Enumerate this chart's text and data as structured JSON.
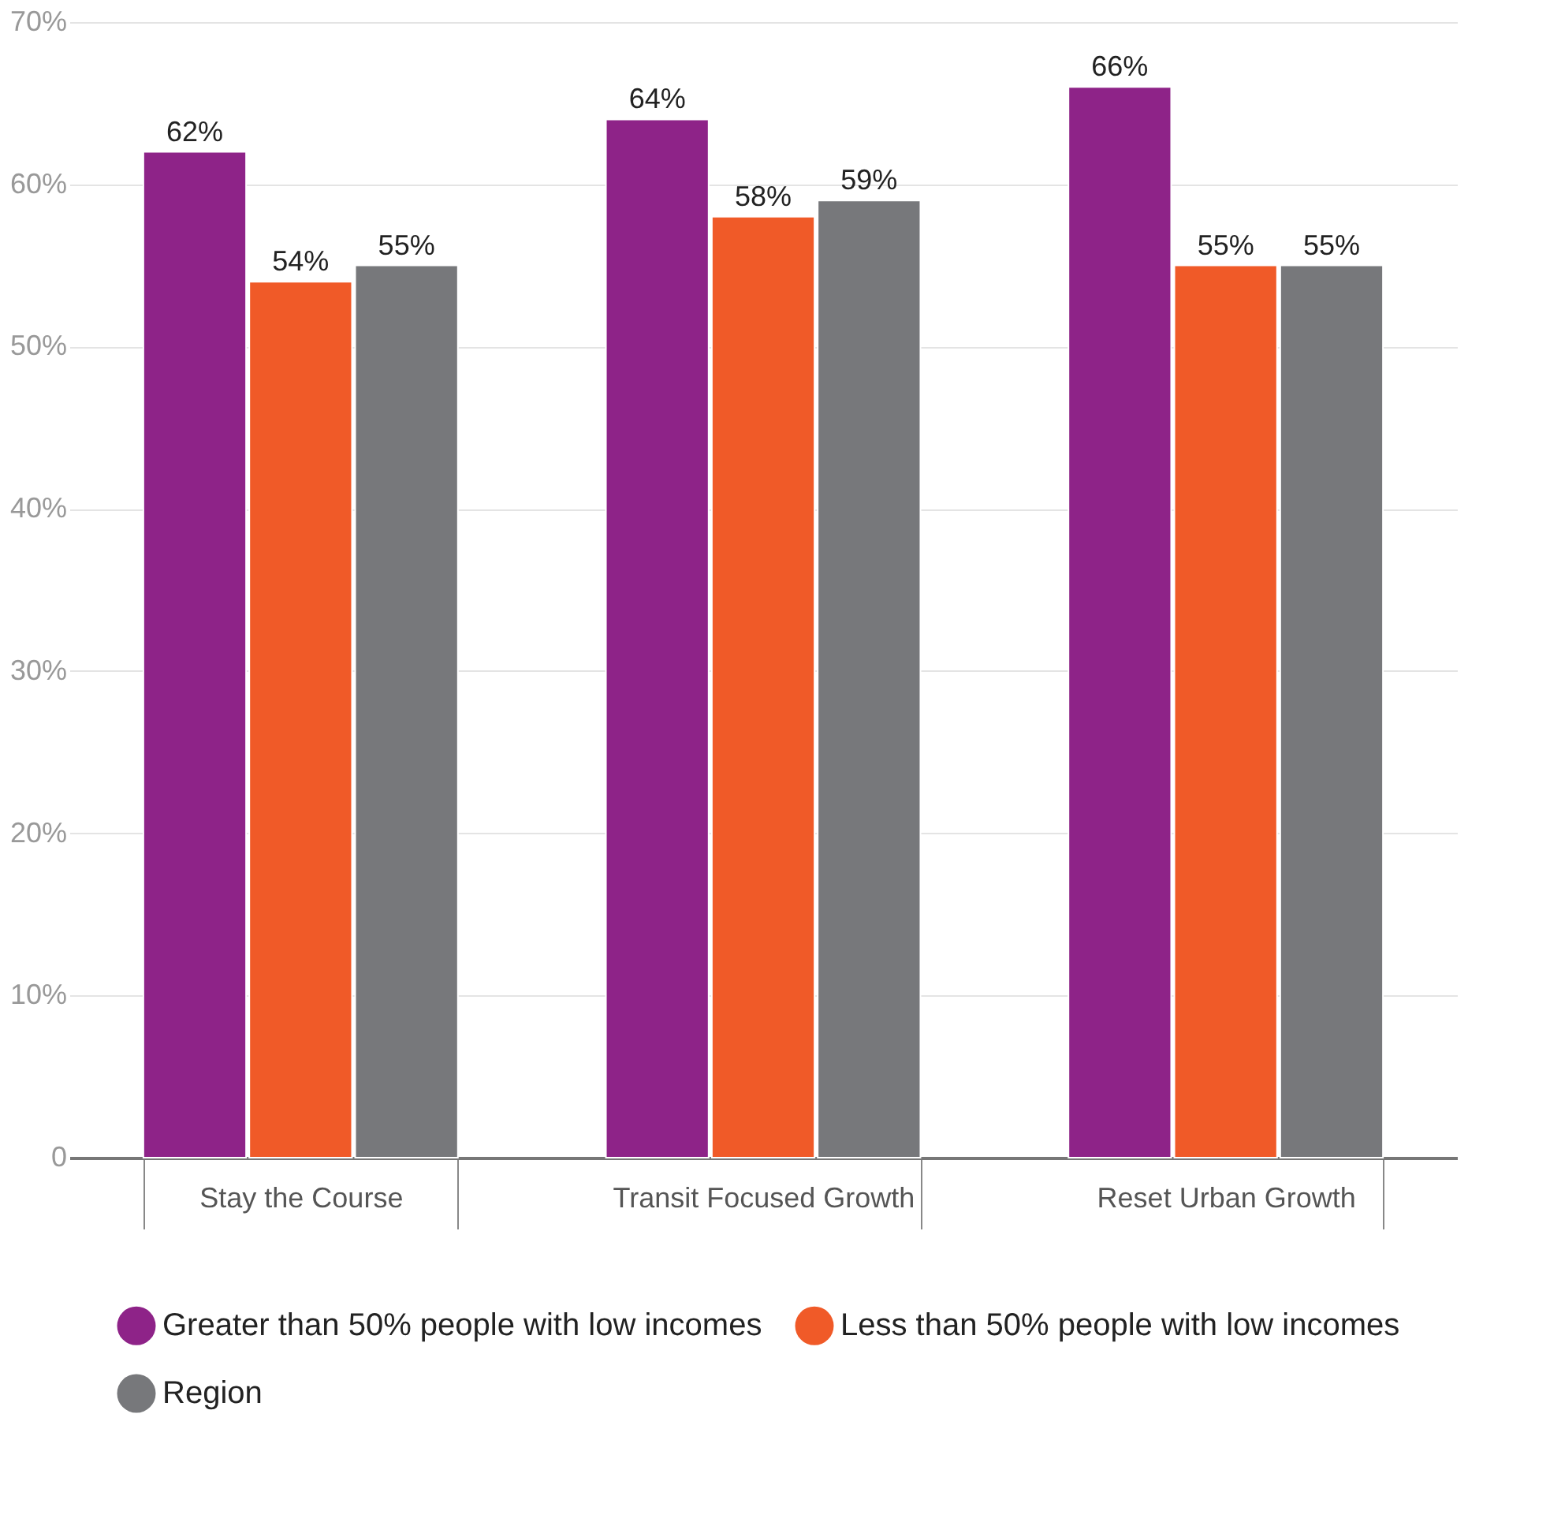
{
  "chart_data": {
    "type": "bar",
    "categories": [
      "Stay the Course",
      "Transit Focused Growth",
      "Reset Urban Growth"
    ],
    "series": [
      {
        "name": "Greater than 50% people with low incomes",
        "color": "#8e2388",
        "values": [
          62,
          64,
          66
        ],
        "value_labels": [
          "62%",
          "64%",
          "66%"
        ]
      },
      {
        "name": "Less than 50% people with low incomes",
        "color": "#f05a28",
        "values": [
          54,
          58,
          55
        ],
        "value_labels": [
          "54%",
          "58%",
          "55%"
        ]
      },
      {
        "name": "Region",
        "color": "#77787b",
        "values": [
          55,
          59,
          55
        ],
        "value_labels": [
          "55%",
          "59%",
          "55%"
        ]
      }
    ],
    "ylim": [
      0,
      70
    ],
    "yticks": [
      {
        "value": 0,
        "label": "0"
      },
      {
        "value": 10,
        "label": "10%"
      },
      {
        "value": 20,
        "label": "20%"
      },
      {
        "value": 30,
        "label": "30%"
      },
      {
        "value": 40,
        "label": "40%"
      },
      {
        "value": 50,
        "label": "50%"
      },
      {
        "value": 60,
        "label": "60%"
      },
      {
        "value": 70,
        "label": "70%"
      }
    ],
    "grid": "y",
    "legend": "bottom"
  }
}
